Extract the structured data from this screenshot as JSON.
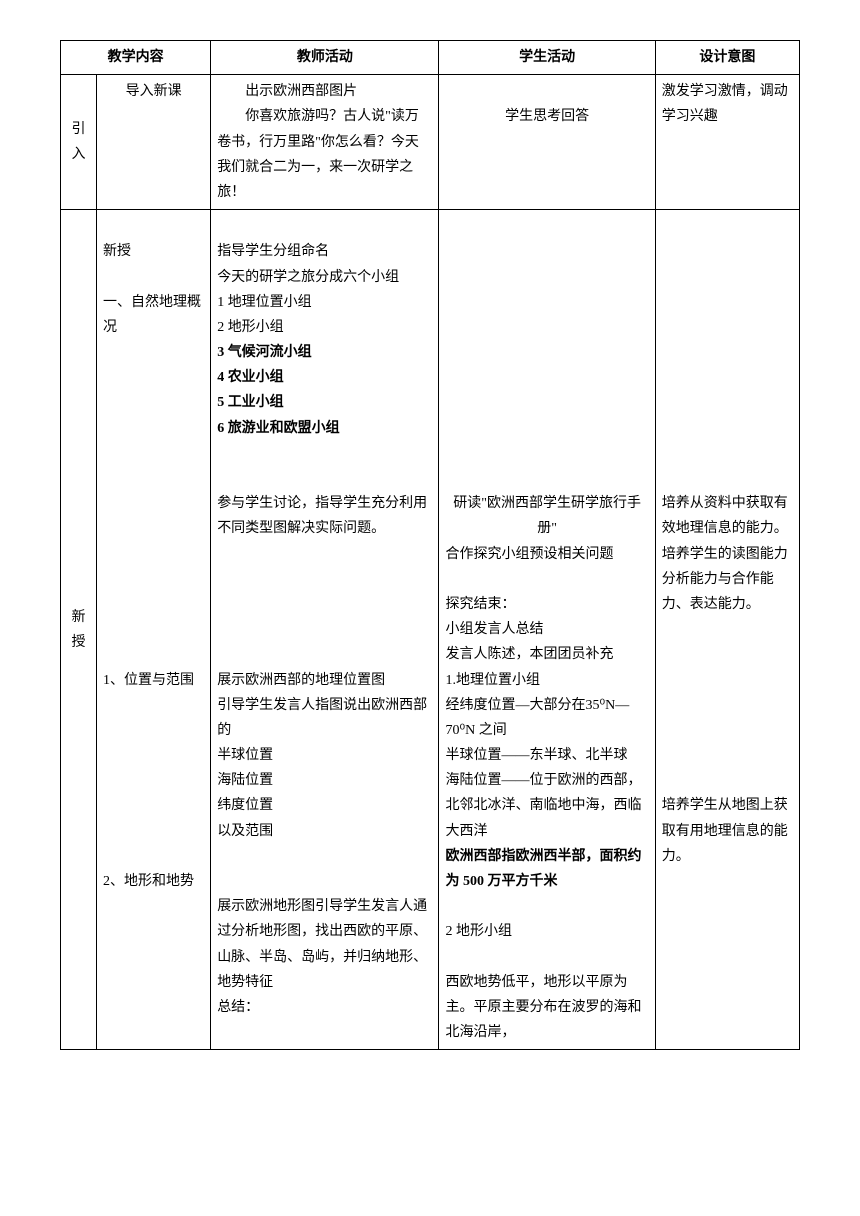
{
  "headers": {
    "content": "教学内容",
    "teacher": "教师活动",
    "student": "学生活动",
    "intent": "设计意图"
  },
  "intro": {
    "stage": "引入",
    "content": "导入新课",
    "teacher_line1": "出示欧洲西部图片",
    "teacher_line2": "你喜欢旅游吗？古人说\"读万卷书，行万里路\"你怎么看？今天我们就合二为一，来一次研学之旅！",
    "student": "学生思考回答",
    "intent": "激发学习激情，调动学习兴趣"
  },
  "main": {
    "stage": "新授",
    "content_block1_title": "新授",
    "content_block1_sub": "一、自然地理概况",
    "teacher_block1_line1": "指导学生分组命名",
    "teacher_block1_line2": "今天的研学之旅分成六个小组",
    "teacher_block1_g1": "1 地理位置小组",
    "teacher_block1_g2": "2 地形小组",
    "teacher_block1_g3": "3 气候河流小组",
    "teacher_block1_g4": "4 农业小组",
    "teacher_block1_g5": "5 工业小组",
    "teacher_block1_g6": "6 旅游业和欧盟小组",
    "teacher_block2": "参与学生讨论，指导学生充分利用不同类型图解决实际问题。",
    "student_block2_line1": "研读\"欧洲西部学生研学旅行手册\"",
    "student_block2_line2": "合作探究小组预设相关问题",
    "student_block2_line3": "探究结束：",
    "student_block2_line4": "小组发言人总结",
    "student_block2_line5": "发言人陈述，本团团员补充",
    "intent_block2": "培养从资料中获取有效地理信息的能力。培养学生的读图能力分析能力与合作能力、表达能力。",
    "content_section1": "1、位置与范围",
    "teacher_section1_line1": "展示欧洲西部的地理位置图",
    "teacher_section1_line2": "引导学生发言人指图说出欧洲西部的",
    "teacher_section1_line3": "半球位置",
    "teacher_section1_line4": "海陆位置",
    "teacher_section1_line5": "纬度位置",
    "teacher_section1_line6": "以及范围",
    "student_section1_title": "1.地理位置小组",
    "student_section1_line1": "经纬度位置—大部分在35⁰N—70⁰N 之间",
    "student_section1_line2": "半球位置——东半球、北半球",
    "student_section1_line3": "海陆位置——位于欧洲的西部，北邻北冰洋、南临地中海，西临大西洋",
    "student_section1_bold": "欧洲西部指欧洲西半部，面积约为 500 万平方千米",
    "intent_section1": "培养学生从地图上获取有用地理信息的能力。",
    "content_section2": "2、地形和地势",
    "teacher_section2_line1": "展示欧洲地形图引导学生发言人通过分析地形图，找出西欧的平原、山脉、半岛、岛屿，并归纳地形、地势特征",
    "teacher_section2_line2": "总结：",
    "student_section2_title": "2 地形小组",
    "student_section2_line1": "西欧地势低平，地形以平原为主。平原主要分布在波罗的海和北海沿岸，"
  }
}
